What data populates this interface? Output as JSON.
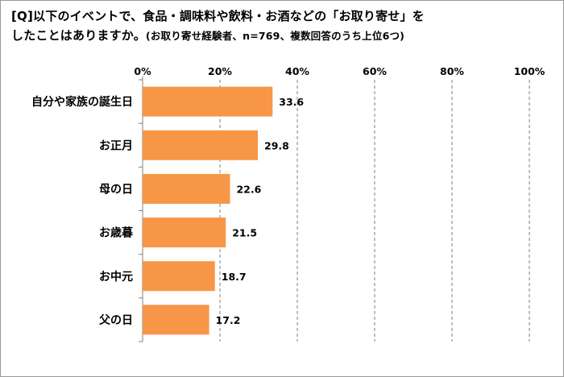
{
  "title": {
    "line1": "[Q]以下のイベントで、食品・調味料や飲料・お酒などの「お取り寄せ」を",
    "line2": "したことはありますか。",
    "note": "(お取り寄せ経験者、n=769、複数回答のうち上位6つ)"
  },
  "chart_data": {
    "type": "bar",
    "orientation": "horizontal",
    "categories": [
      "自分や家族の誕生日",
      "お正月",
      "母の日",
      "お歳暮",
      "お中元",
      "父の日"
    ],
    "values": [
      33.6,
      29.8,
      22.6,
      21.5,
      18.7,
      17.2
    ],
    "xlim": [
      0,
      100
    ],
    "ticks": [
      0,
      20,
      40,
      60,
      80,
      100
    ],
    "tick_labels": [
      "0%",
      "20%",
      "40%",
      "60%",
      "80%",
      "100%"
    ],
    "bar_color": "#F79646",
    "grid": true,
    "legend": "none"
  }
}
